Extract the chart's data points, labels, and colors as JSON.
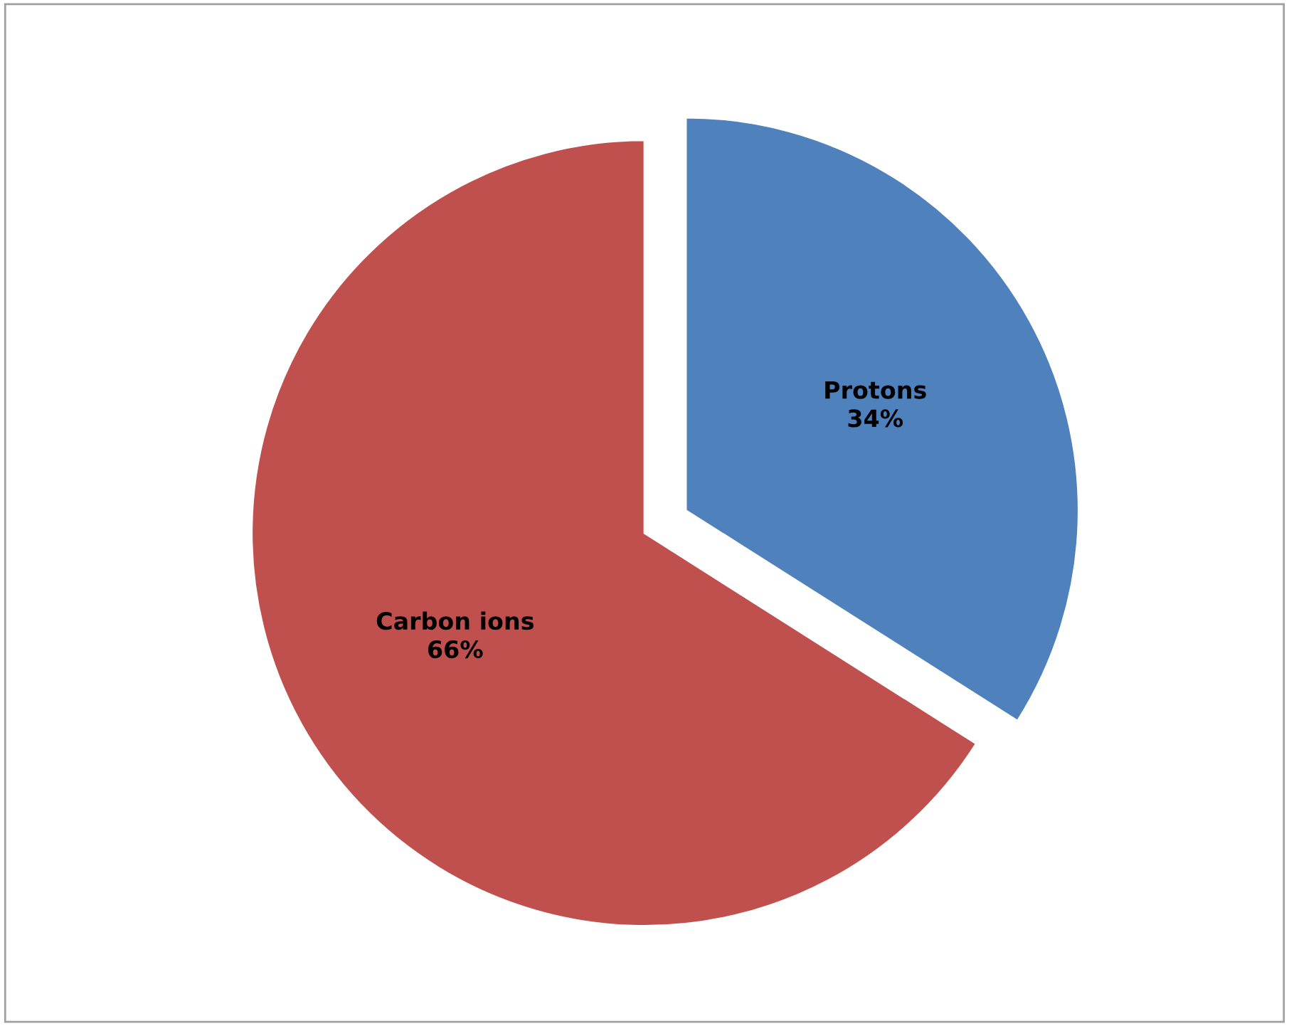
{
  "chart_data": {
    "type": "pie",
    "categories": [
      "Protons",
      "Carbon ions"
    ],
    "values": [
      34,
      66
    ],
    "value_labels": [
      "34%",
      "66%"
    ],
    "colors": [
      "#4f81bd",
      "#c0504d"
    ],
    "legend": false
  }
}
